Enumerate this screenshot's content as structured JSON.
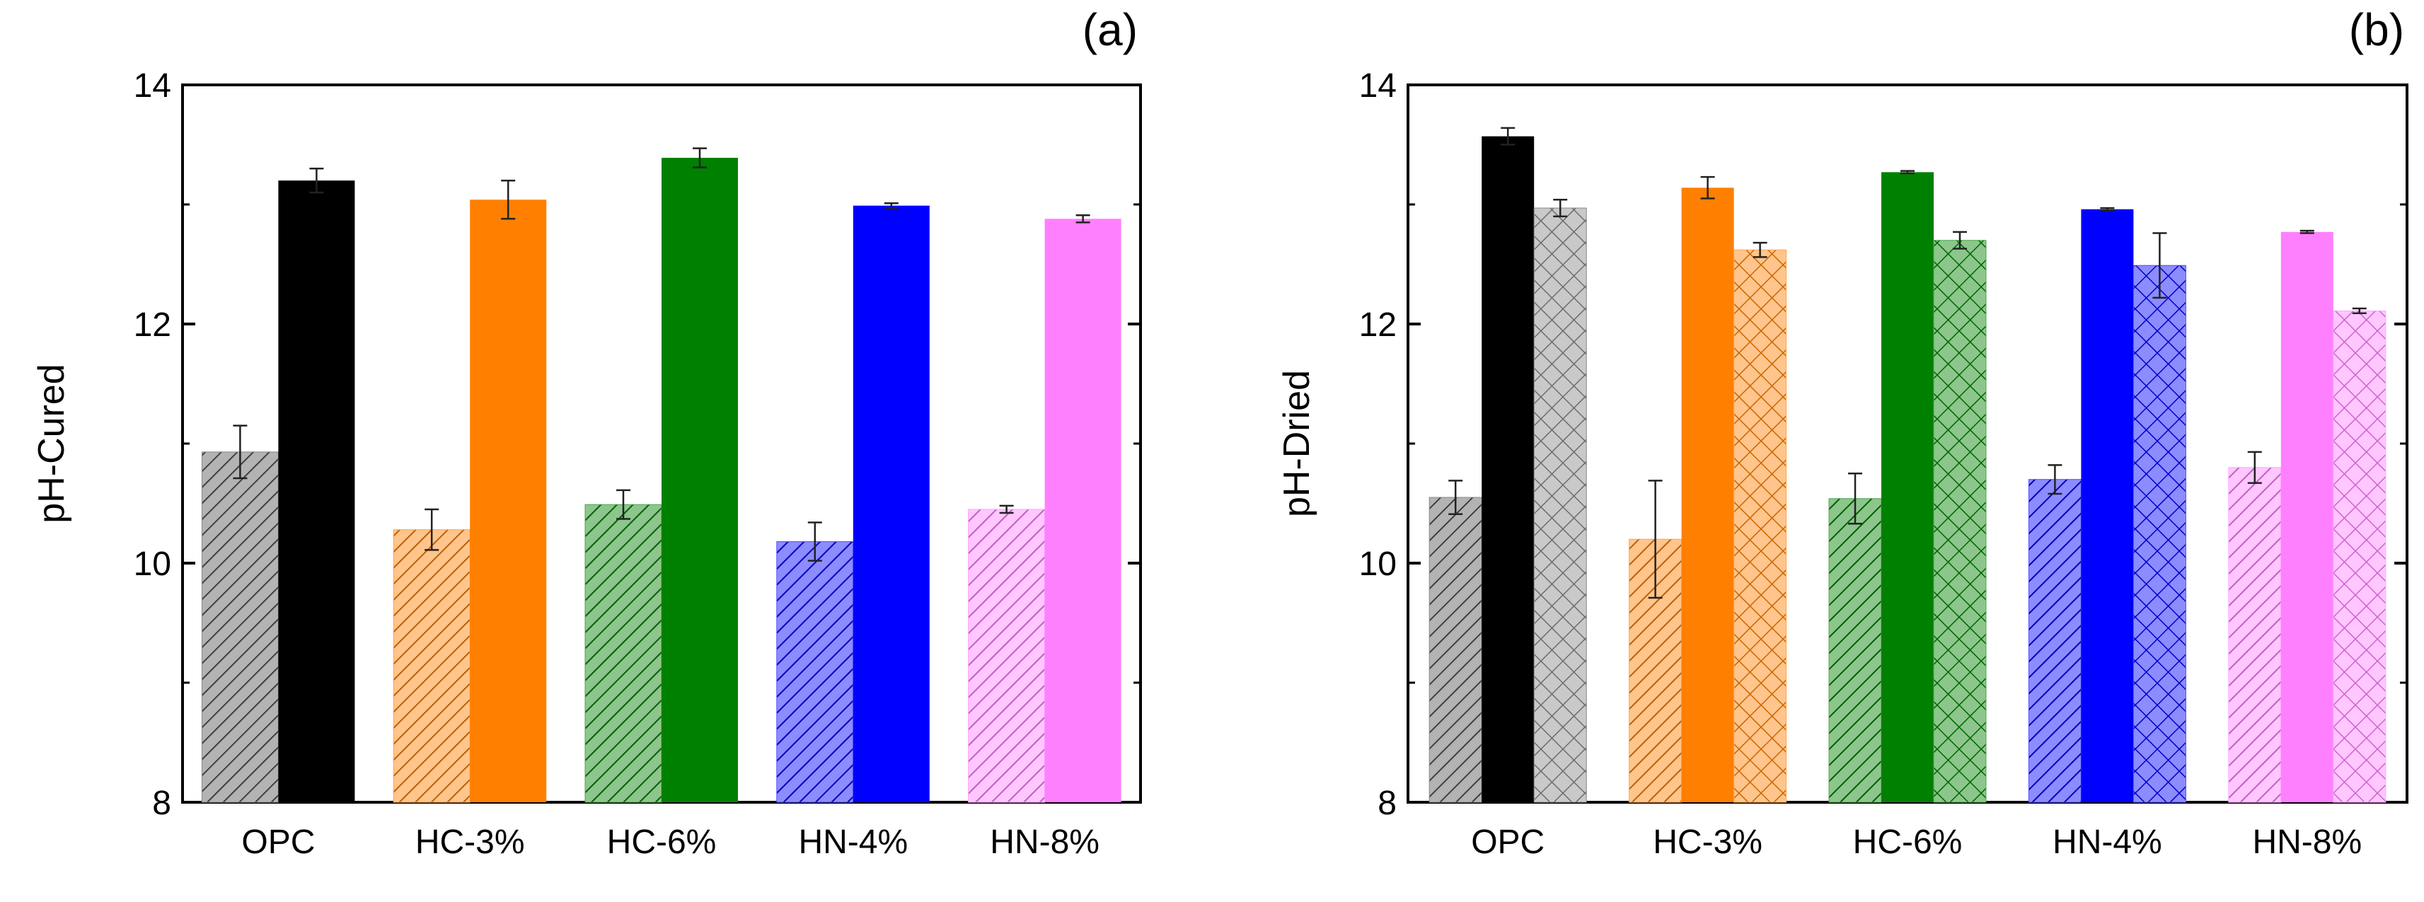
{
  "chart_data": [
    {
      "type": "bar",
      "panel_label": "(a)",
      "ylabel": "pH-Cured",
      "xlabel": "",
      "ylim": [
        8,
        14
      ],
      "yticks": [
        "8",
        "10",
        "12",
        "14"
      ],
      "categories": [
        "OPC",
        "HC-3%",
        "HC-6%",
        "HN-4%",
        "HN-8%"
      ],
      "colors": [
        "#555555",
        "#ff7f00",
        "#008000",
        "#0000ff",
        "#ff80ff"
      ],
      "series": [
        {
          "fill": "hatched-light",
          "values": [
            10.93,
            10.28,
            10.49,
            10.18,
            10.45
          ],
          "errors": [
            0.22,
            0.17,
            0.12,
            0.16,
            0.03
          ]
        },
        {
          "fill": "solid",
          "values": [
            13.2,
            13.04,
            13.39,
            12.99,
            12.88
          ],
          "errors": [
            0.1,
            0.16,
            0.08,
            0.02,
            0.03
          ]
        }
      ]
    },
    {
      "type": "bar",
      "panel_label": "(b)",
      "ylabel": "pH-Dried",
      "xlabel": "",
      "ylim": [
        8,
        14
      ],
      "yticks": [
        "8",
        "10",
        "12",
        "14"
      ],
      "categories": [
        "OPC",
        "HC-3%",
        "HC-6%",
        "HN-4%",
        "HN-8%"
      ],
      "colors": [
        "#555555",
        "#ff7f00",
        "#008000",
        "#0000ff",
        "#ff80ff"
      ],
      "series": [
        {
          "fill": "hatched-light",
          "values": [
            10.55,
            10.2,
            10.54,
            10.7,
            10.8
          ],
          "errors": [
            0.14,
            0.49,
            0.21,
            0.12,
            0.13
          ]
        },
        {
          "fill": "solid",
          "values": [
            13.57,
            13.14,
            13.27,
            12.96,
            12.77
          ],
          "errors": [
            0.07,
            0.09,
            0.01,
            0.01,
            0.01
          ]
        },
        {
          "fill": "crosshatched",
          "values": [
            12.97,
            12.62,
            12.7,
            12.49,
            12.11
          ],
          "errors": [
            0.07,
            0.06,
            0.07,
            0.27,
            0.02
          ]
        }
      ]
    }
  ]
}
